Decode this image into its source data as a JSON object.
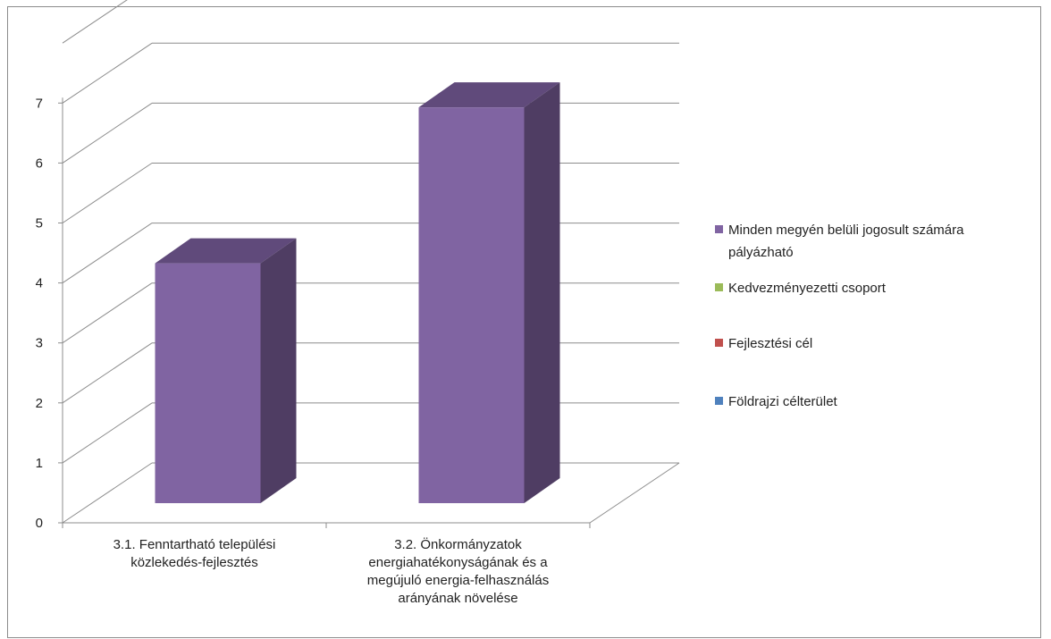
{
  "chart_data": {
    "type": "bar",
    "title": "",
    "xlabel": "",
    "ylabel": "",
    "ylim": [
      0,
      7
    ],
    "yticks": [
      0,
      1,
      2,
      3,
      4,
      5,
      6,
      7
    ],
    "categories": [
      [
        "3.1. Fenntartható települési",
        "közlekedés-fejlesztés"
      ],
      [
        "3.2. Önkormányzatok",
        "energiahatékonyságának és a",
        "megújuló energia-felhasználás",
        "arányának növelése"
      ]
    ],
    "series": [
      {
        "name": "Minden megyén belüli jogosult számára pályázható",
        "color": "#8064a2",
        "values": [
          4,
          6.6
        ]
      },
      {
        "name": "Kedvezményezetti csoport",
        "color": "#9bbb59",
        "values": [
          0,
          0
        ]
      },
      {
        "name": "Fejlesztési cél",
        "color": "#c0504d",
        "values": [
          0,
          0
        ]
      },
      {
        "name": "Földrajzi célterület",
        "color": "#4f81bd",
        "values": [
          0,
          0
        ]
      }
    ],
    "legend": {
      "position": "right",
      "items": [
        {
          "lines": [
            "Minden megyén belüli jogosult számára",
            "pályázható"
          ],
          "color": "#8064a2"
        },
        {
          "lines": [
            "Kedvezményezetti csoport"
          ],
          "color": "#9bbb59"
        },
        {
          "lines": [
            "Fejlesztési cél"
          ],
          "color": "#c0504d"
        },
        {
          "lines": [
            "Földrajzi célterület"
          ],
          "color": "#4f81bd"
        }
      ]
    },
    "grid": true,
    "three_d": true
  }
}
